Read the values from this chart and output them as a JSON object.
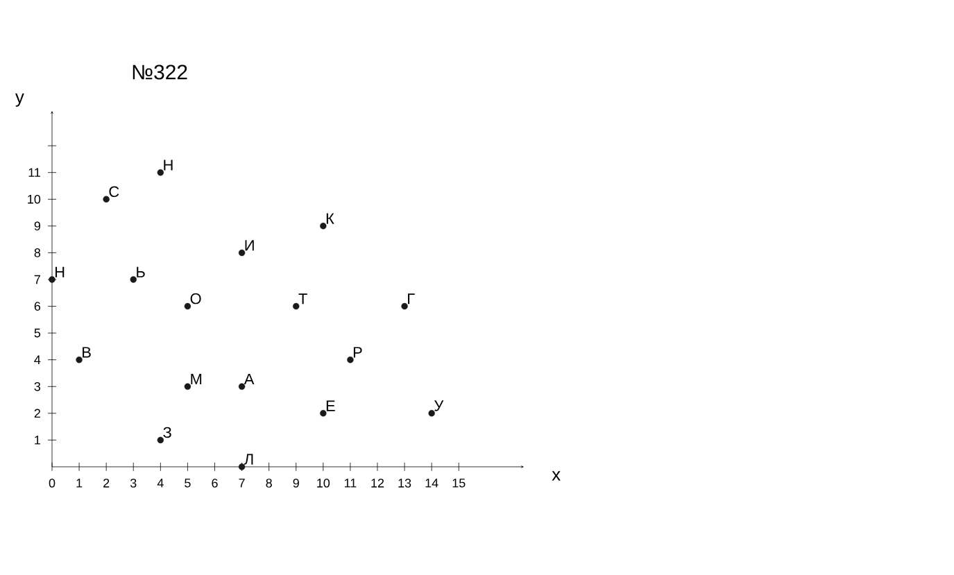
{
  "chart_data": {
    "type": "scatter",
    "title": "№322",
    "xlabel": "x",
    "ylabel": "y",
    "color": "#1a1a1a",
    "x": [
      0,
      2,
      4,
      3,
      1,
      4,
      5,
      5,
      7,
      7,
      7,
      9,
      10,
      10,
      11,
      13,
      14
    ],
    "values": [
      7,
      10,
      11,
      7,
      4,
      1,
      3,
      6,
      8,
      3,
      0,
      6,
      9,
      2,
      4,
      6,
      2
    ],
    "annotations": [
      {
        "text": "Н",
        "x": 0,
        "y": 7
      },
      {
        "text": "С",
        "x": 2,
        "y": 10
      },
      {
        "text": "Н",
        "x": 4,
        "y": 11
      },
      {
        "text": "Ь",
        "x": 3,
        "y": 7
      },
      {
        "text": "В",
        "x": 1,
        "y": 4
      },
      {
        "text": "З",
        "x": 4,
        "y": 1
      },
      {
        "text": "М",
        "x": 5,
        "y": 3
      },
      {
        "text": "О",
        "x": 5,
        "y": 6
      },
      {
        "text": "И",
        "x": 7,
        "y": 8
      },
      {
        "text": "А",
        "x": 7,
        "y": 3
      },
      {
        "text": "Л",
        "x": 7,
        "y": 0
      },
      {
        "text": "Т",
        "x": 9,
        "y": 6
      },
      {
        "text": "К",
        "x": 10,
        "y": 9
      },
      {
        "text": "Е",
        "x": 10,
        "y": 2
      },
      {
        "text": "Р",
        "x": 11,
        "y": 4
      },
      {
        "text": "Г",
        "x": 13,
        "y": 6
      },
      {
        "text": "У",
        "x": 14,
        "y": 2
      }
    ],
    "xlim": [
      0,
      17.4
    ],
    "ylim": [
      0,
      13.3
    ],
    "xticks": [
      0,
      1,
      2,
      3,
      4,
      5,
      6,
      7,
      8,
      9,
      10,
      11,
      12,
      13,
      14,
      15
    ],
    "yticks": [
      1,
      2,
      3,
      4,
      5,
      6,
      7,
      8,
      9,
      10,
      11,
      {
        "value": 12,
        "label": null
      }
    ]
  }
}
